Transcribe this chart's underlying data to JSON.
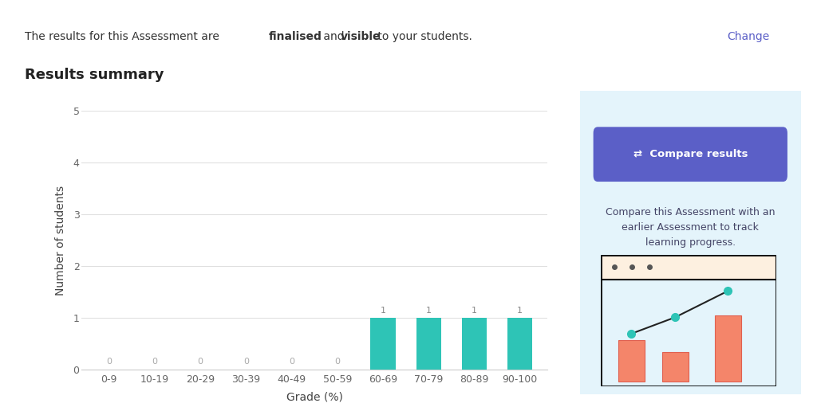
{
  "categories": [
    "0-9",
    "10-19",
    "20-29",
    "30-39",
    "40-49",
    "50-59",
    "60-69",
    "70-79",
    "80-89",
    "90-100"
  ],
  "values": [
    0,
    0,
    0,
    0,
    0,
    0,
    1,
    1,
    1,
    1
  ],
  "bar_color_nonzero": "#2ec4b6",
  "xlabel": "Grade (%)",
  "ylabel": "Number of students",
  "ylim": [
    0,
    5
  ],
  "yticks": [
    0,
    1,
    2,
    3,
    4,
    5
  ],
  "background_color": "#f5f5f5",
  "page_bg": "#ffffff",
  "chart_card_bg": "#ffffff",
  "right_card_bg": "#e4f4fb",
  "grid_color": "#e0e0e0",
  "label_color_zero": "#aaaaaa",
  "label_color_nonzero": "#888888",
  "label_fontsize": 8,
  "axis_fontsize": 10,
  "tick_fontsize": 9,
  "bar_width": 0.55,
  "header_text": "The results for this Assessment are ",
  "header_bold1": "finalised",
  "header_mid": " and ",
  "header_bold2": "visible",
  "header_end": " to your students.",
  "change_text": "Change",
  "change_color": "#5b5fc7",
  "results_summary": "Results summary",
  "compare_btn_text": "⇄  Compare results",
  "compare_btn_color": "#5b5fc7",
  "compare_desc": "Compare this Assessment with an\nearlier Assessment to track\nlearning progress.",
  "header_color": "#333333",
  "separator_color": "#dddddd"
}
